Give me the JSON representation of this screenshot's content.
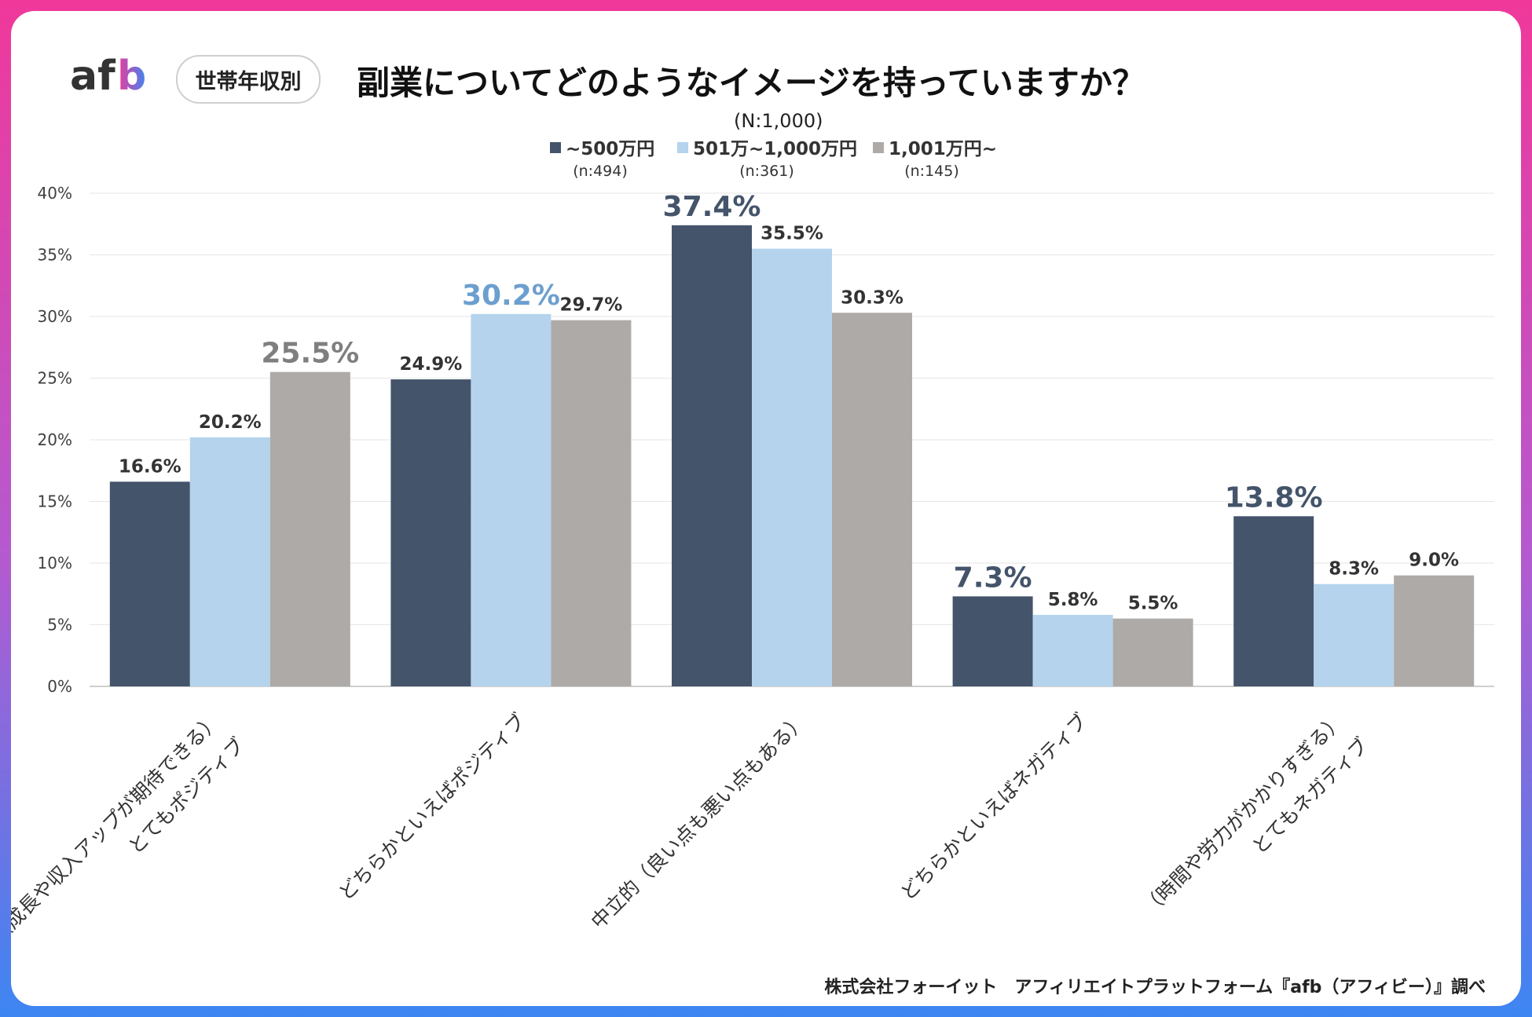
{
  "header": {
    "logo_text": "afb",
    "badge": "世帯年収別",
    "title": "副業についてどのようなイメージを持っていますか？",
    "sample_size": "(N:1,000)"
  },
  "footer": {
    "source": "株式会社フォーイット　アフィリエイトプラットフォーム『afb（アフィビー）』調べ"
  },
  "colors": {
    "series1": "#44546a",
    "series2": "#b5d3ec",
    "series3": "#aeaaa7",
    "highlight_series2_label": "#6c9fcf",
    "highlight_series3_label": "#7f7f7f"
  },
  "chart_data": {
    "type": "bar",
    "title": "副業についてどのようなイメージを持っていますか？",
    "ylim": [
      0,
      40
    ],
    "yticks": [
      "0%",
      "5%",
      "10%",
      "15%",
      "20%",
      "25%",
      "30%",
      "35%",
      "40%"
    ],
    "grid": true,
    "legend_position": "top-center",
    "categories": [
      [
        "とてもポジティブ",
        "（成長や収入アップが期待できる）"
      ],
      [
        "どちらかといえばポジティブ"
      ],
      [
        "中立的（良い点も悪い点もある）"
      ],
      [
        "どちらかといえばネガティブ"
      ],
      [
        "とてもネガティブ",
        "（時間や労力がかかりすぎる）"
      ]
    ],
    "series": [
      {
        "name": "~500万円",
        "n": "(n:494)",
        "values": [
          16.6,
          24.9,
          37.4,
          7.3,
          13.8
        ],
        "labels": [
          "16.6%",
          "24.9%",
          "37.4%",
          "7.3%",
          "13.8%"
        ]
      },
      {
        "name": "501万~1,000万円",
        "n": "(n:361)",
        "values": [
          20.2,
          30.2,
          35.5,
          5.8,
          8.3
        ],
        "labels": [
          "20.2%",
          "30.2%",
          "35.5%",
          "5.8%",
          "8.3%"
        ]
      },
      {
        "name": "1,001万円~",
        "n": "(n:145)",
        "values": [
          25.5,
          29.7,
          30.3,
          5.5,
          9.0
        ],
        "labels": [
          "25.5%",
          "29.7%",
          "30.3%",
          "5.5%",
          "9.0%"
        ]
      }
    ],
    "highlighted": [
      [
        0,
        2
      ],
      [
        1,
        1
      ],
      [
        2,
        0
      ],
      [
        3,
        0
      ],
      [
        4,
        0
      ]
    ]
  }
}
